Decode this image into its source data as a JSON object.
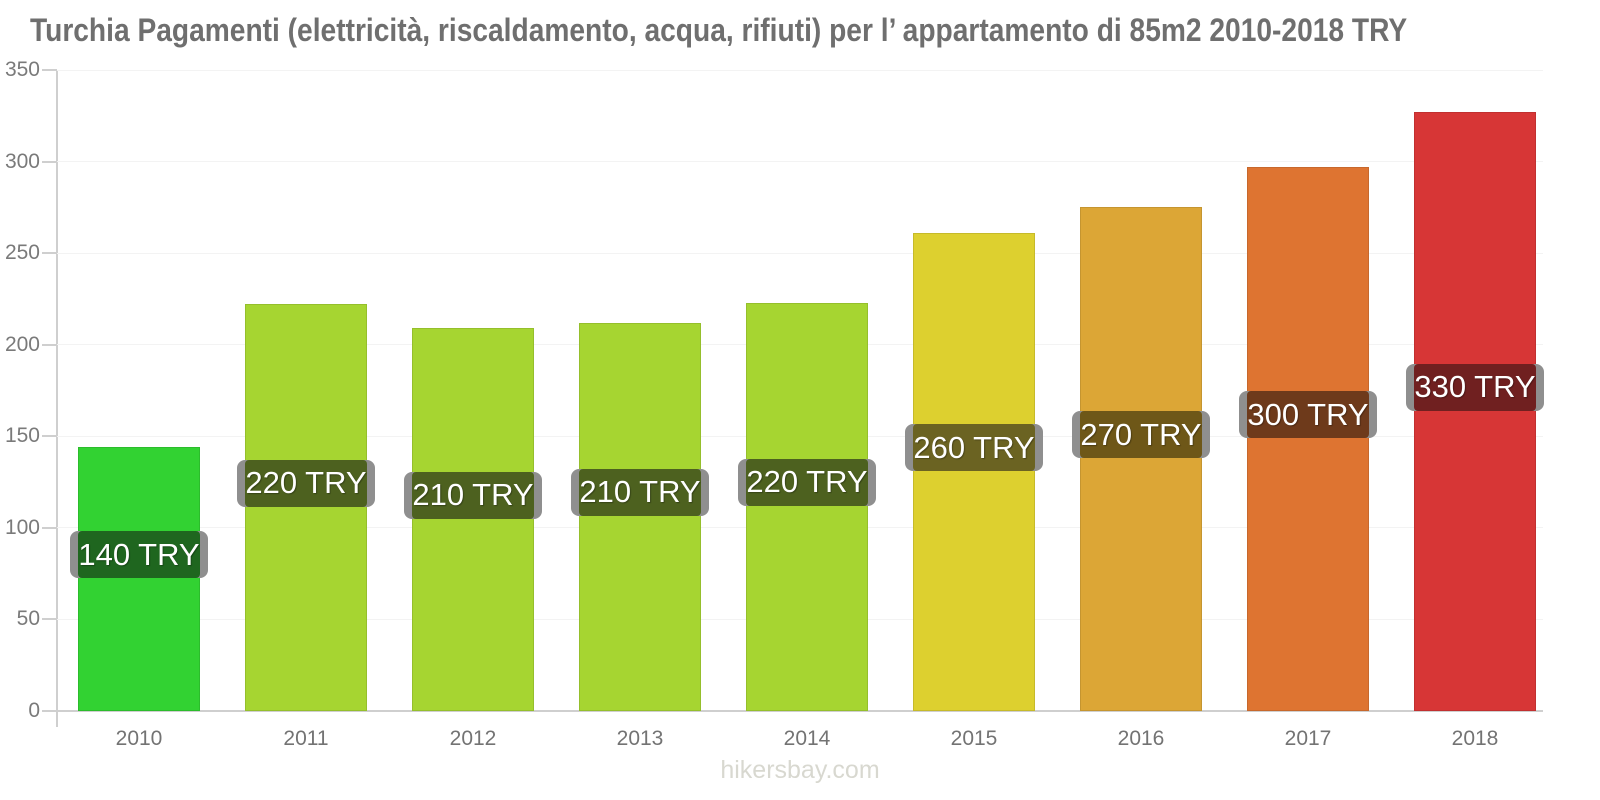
{
  "page": {
    "title": "Turchia Pagamenti (elettricità, riscaldamento, acqua, rifiuti) per l’ appartamento di 85m2 2010-2018 TRY",
    "watermark": "hikersbay.com"
  },
  "colors": {
    "title_text": "#6f6f6f",
    "axis_line": "#cfcfcf",
    "gridline": "#f3f3f3",
    "y_label_text": "#7a7a7a",
    "x_label_text": "#737373",
    "value_label_text": "#ffffff",
    "value_label_cap": "#8f8f8f",
    "watermark_text": "#d8d8d0"
  },
  "chart_data": {
    "type": "bar",
    "title": "Turchia Pagamenti (elettricità, riscaldamento, acqua, rifiuti) per l’ appartamento di 85m2 2010-2018 TRY",
    "categories": [
      "2010",
      "2011",
      "2012",
      "2013",
      "2014",
      "2015",
      "2016",
      "2017",
      "2018"
    ],
    "values": [
      144,
      222,
      209,
      212,
      223,
      261,
      275,
      297,
      327
    ],
    "value_labels": [
      "140 TRY",
      "220 TRY",
      "210 TRY",
      "210 TRY",
      "220 TRY",
      "260 TRY",
      "270 TRY",
      "300 TRY",
      "330 TRY"
    ],
    "bar_colors": [
      "#32d232",
      "#a6d531",
      "#a6d531",
      "#a6d531",
      "#a6d531",
      "#ddd02f",
      "#dca636",
      "#de7431",
      "#d73636"
    ],
    "bar_label_colors": [
      "#1f661f",
      "#4d611f",
      "#4d611f",
      "#4d611f",
      "#4d611f",
      "#6b6322",
      "#6e5718",
      "#6e3a1b",
      "#702020"
    ],
    "xlabel": "",
    "ylabel": "",
    "ylim": [
      0,
      350
    ],
    "yticks": [
      0,
      50,
      100,
      150,
      200,
      250,
      300,
      350
    ],
    "grid": true,
    "legend": false,
    "watermark": "hikersbay.com"
  }
}
